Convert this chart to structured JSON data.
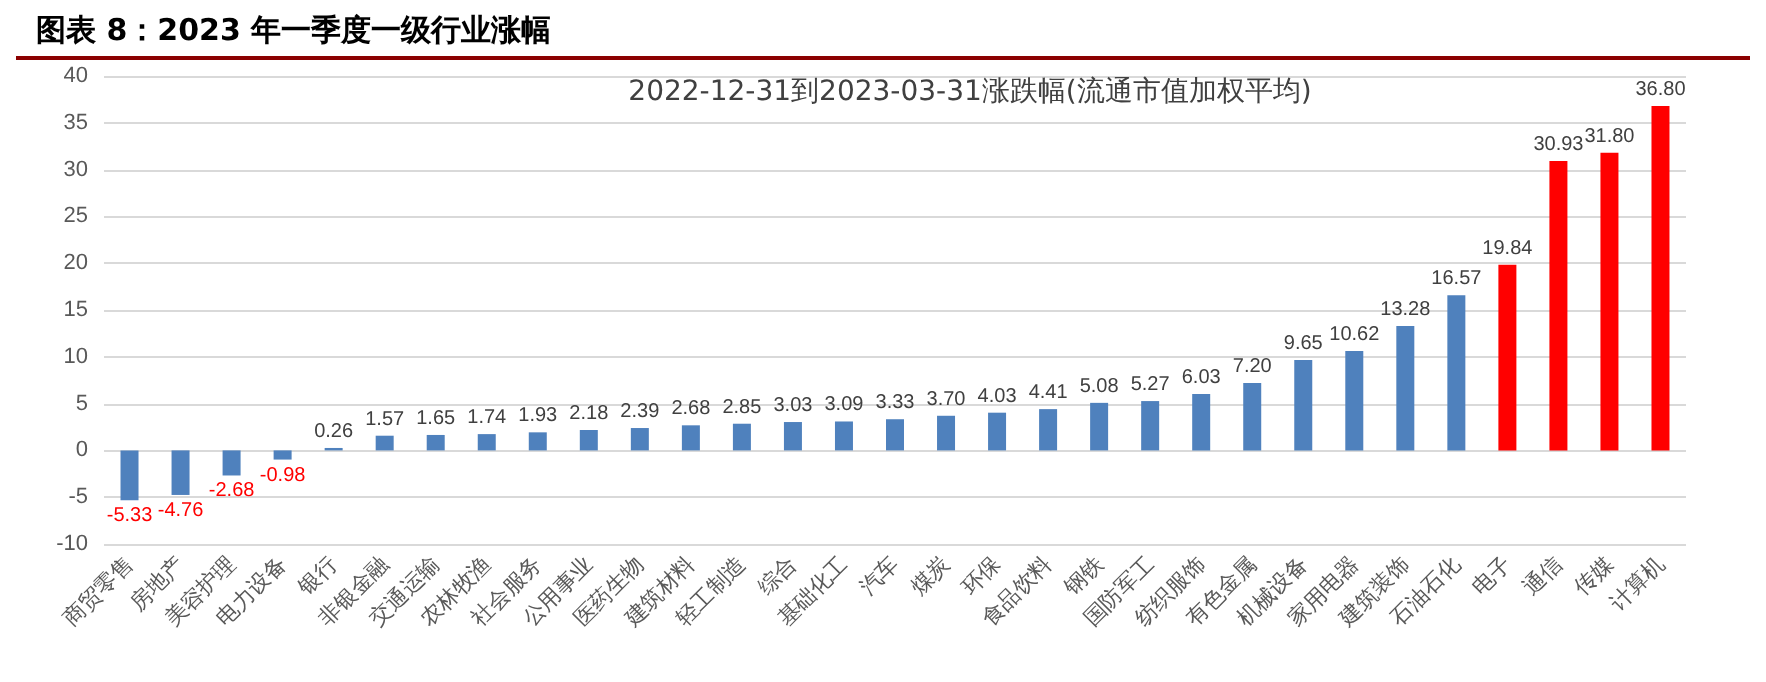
{
  "chart_data": {
    "type": "bar",
    "title": "图表 8：2023 年一季度一级行业涨幅",
    "subtitle": "2022-12-31到2023-03-31涨跌幅(流通市值加权平均)",
    "categories": [
      "商贸零售",
      "房地产",
      "美容护理",
      "电力设备",
      "银行",
      "非银金融",
      "交通运输",
      "农林牧渔",
      "社会服务",
      "公用事业",
      "医药生物",
      "建筑材料",
      "轻工制造",
      "综合",
      "基础化工",
      "汽车",
      "煤炭",
      "环保",
      "食品饮料",
      "钢铁",
      "国防军工",
      "纺织服饰",
      "有色金属",
      "机械设备",
      "家用电器",
      "建筑装饰",
      "石油石化",
      "电子",
      "通信",
      "传媒",
      "计算机"
    ],
    "values": [
      -5.33,
      -4.76,
      -2.68,
      -0.98,
      0.26,
      1.57,
      1.65,
      1.74,
      1.93,
      2.18,
      2.39,
      2.68,
      2.85,
      3.03,
      3.09,
      3.33,
      3.7,
      4.03,
      4.41,
      5.08,
      5.27,
      6.03,
      7.2,
      9.65,
      10.62,
      13.28,
      16.57,
      19.84,
      30.93,
      31.8,
      36.8
    ],
    "value_labels": [
      "-5.33",
      "-4.76",
      "-2.68",
      "-0.98",
      "0.26",
      "1.57",
      "1.65",
      "1.74",
      "1.93",
      "2.18",
      "2.39",
      "2.68",
      "2.85",
      "3.03",
      "3.09",
      "3.33",
      "3.70",
      "4.03",
      "4.41",
      "5.08",
      "5.27",
      "6.03",
      "7.20",
      "9.65",
      "10.62",
      "13.28",
      "16.57",
      "19.84",
      "30.93",
      "31.80",
      "36.80"
    ],
    "colors": [
      "#4f81bd",
      "#4f81bd",
      "#4f81bd",
      "#4f81bd",
      "#4f81bd",
      "#4f81bd",
      "#4f81bd",
      "#4f81bd",
      "#4f81bd",
      "#4f81bd",
      "#4f81bd",
      "#4f81bd",
      "#4f81bd",
      "#4f81bd",
      "#4f81bd",
      "#4f81bd",
      "#4f81bd",
      "#4f81bd",
      "#4f81bd",
      "#4f81bd",
      "#4f81bd",
      "#4f81bd",
      "#4f81bd",
      "#4f81bd",
      "#4f81bd",
      "#4f81bd",
      "#4f81bd",
      "#ff0000",
      "#ff0000",
      "#ff0000",
      "#ff0000"
    ],
    "ylim": [
      -10,
      40
    ],
    "yticks": [
      -10,
      -5,
      0,
      5,
      10,
      15,
      20,
      25,
      30,
      35,
      40
    ],
    "grid": "y"
  }
}
